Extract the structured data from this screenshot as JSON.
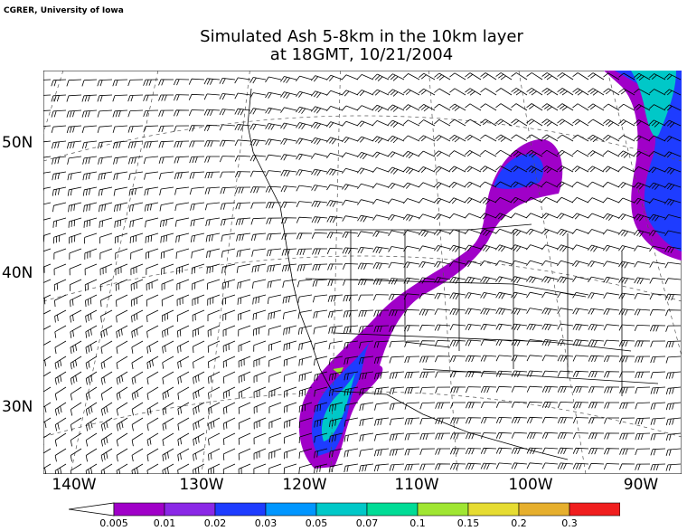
{
  "credit": "CGRER, University of Iowa",
  "title_line1": "Simulated Ash 5-8km in the 10km layer",
  "title_line2": "at 18GMT, 10/21/2004",
  "lat_labels": [
    "50N",
    "40N",
    "30N"
  ],
  "lon_labels": [
    "140W",
    "130W",
    "120W",
    "110W",
    "100W",
    "90W"
  ],
  "colorbar": {
    "levels": [
      "0.005",
      "0.01",
      "0.02",
      "0.03",
      "0.05",
      "0.07",
      "0.1",
      "0.15",
      "0.2",
      "0.3"
    ],
    "colors": [
      "#a000c8",
      "#8a28e6",
      "#1e3cff",
      "#0096ff",
      "#00c8c8",
      "#00dc96",
      "#a0e632",
      "#e6dc32",
      "#e6af2d",
      "#f01e1e",
      "#f0288c"
    ]
  },
  "wind_barbs": "wind-barbs",
  "ash_plume": "simulated-ash-concentration"
}
